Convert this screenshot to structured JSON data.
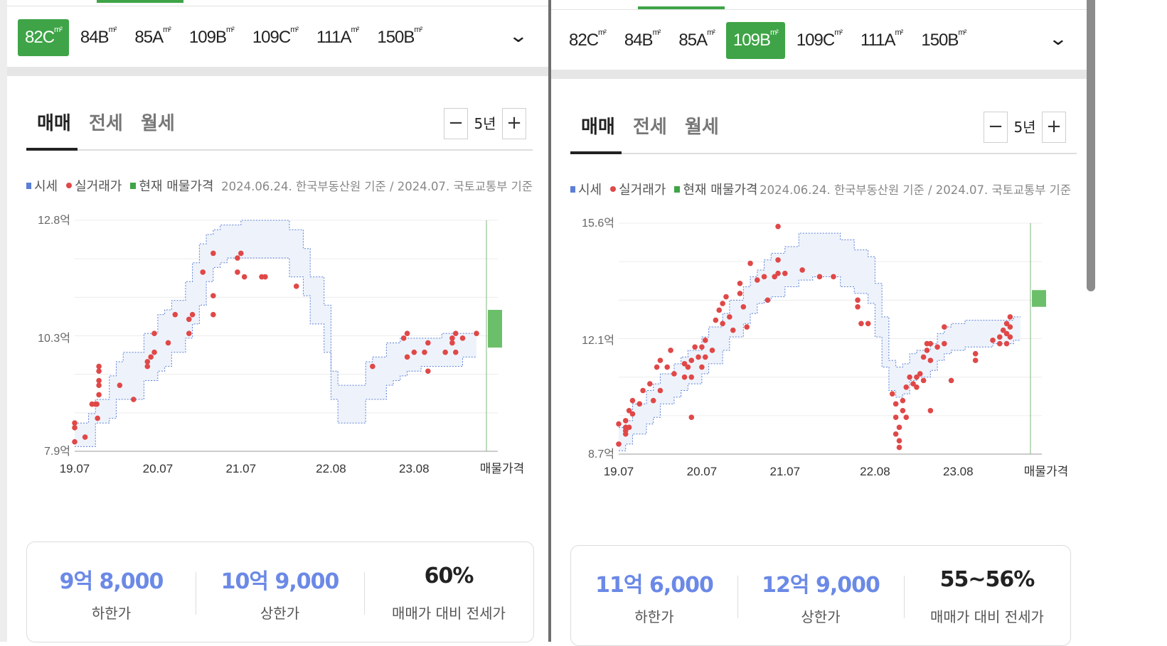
{
  "panels": [
    {
      "size_tabs": [
        {
          "label": "82C",
          "unit": "m²",
          "active": true
        },
        {
          "label": "84B",
          "unit": "m²",
          "active": false
        },
        {
          "label": "85A",
          "unit": "m²",
          "active": false
        },
        {
          "label": "109B",
          "unit": "m²",
          "active": false
        },
        {
          "label": "109C",
          "unit": "m²",
          "active": false
        },
        {
          "label": "111A",
          "unit": "m²",
          "active": false
        },
        {
          "label": "150B",
          "unit": "m²",
          "active": false
        }
      ],
      "deal_tabs": [
        "매매",
        "전세",
        "월세"
      ],
      "period": {
        "label": "5년",
        "minus": "−",
        "plus": "+"
      },
      "legend": {
        "market": "시세",
        "actual": "실거래가",
        "listing": "현재 매물가격"
      },
      "source_note": "2024.06.24. 한국부동산원 기준 / 2024.07. 국토교통부 기준",
      "summary": {
        "low_value": "9억 8,000",
        "low_label": "하한가",
        "high_value": "10억 9,000",
        "high_label": "상한가",
        "ratio_value": "60%",
        "ratio_label": "매매가 대비 전세가"
      }
    },
    {
      "size_tabs": [
        {
          "label": "82C",
          "unit": "m²",
          "active": false
        },
        {
          "label": "84B",
          "unit": "m²",
          "active": false
        },
        {
          "label": "85A",
          "unit": "m²",
          "active": false
        },
        {
          "label": "109B",
          "unit": "m²",
          "active": true
        },
        {
          "label": "109C",
          "unit": "m²",
          "active": false
        },
        {
          "label": "111A",
          "unit": "m²",
          "active": false
        },
        {
          "label": "150B",
          "unit": "m²",
          "active": false
        }
      ],
      "deal_tabs": [
        "매매",
        "전세",
        "월세"
      ],
      "period": {
        "label": "5년",
        "minus": "−",
        "plus": "+"
      },
      "legend": {
        "market": "시세",
        "actual": "실거래가",
        "listing": "현재 매물가격"
      },
      "source_note": "2024.06.24. 한국부동산원 기준 / 2024.07. 국토교통부 기준",
      "summary": {
        "low_value": "11억 6,000",
        "low_label": "하한가",
        "high_value": "12억 9,000",
        "high_label": "상한가",
        "ratio_value": "55~56%",
        "ratio_label": "매매가 대비 전세가"
      }
    }
  ],
  "colors": {
    "accent": "#3fa447",
    "market_band": "#eef3fb",
    "market_line": "#5b7fd6",
    "actual_dot": "#e04848",
    "listing_bar": "#6cbf6a",
    "summary_value": "#6b89e6"
  },
  "chart_data": [
    {
      "type": "scatter",
      "unit": "억",
      "ytick_labels": [
        "12.8억",
        "10.3억",
        "7.9억"
      ],
      "yticks": [
        12.8,
        10.3,
        7.9
      ],
      "ylim": [
        7.9,
        12.8
      ],
      "x_type": "months since 2019.07",
      "xticks": [
        0,
        12,
        24,
        37,
        49
      ],
      "xtick_labels": [
        "19.07",
        "20.07",
        "21.07",
        "22.08",
        "23.08",
        "매물가격"
      ],
      "xlim": [
        0,
        58
      ],
      "market_band": {
        "x": [
          0,
          2,
          3,
          5,
          6,
          7,
          9,
          10,
          12,
          13,
          14,
          16,
          17,
          18,
          19,
          20,
          21,
          22,
          24,
          26,
          27,
          31,
          33,
          34,
          36,
          37,
          38,
          39,
          40,
          42,
          43,
          45,
          46,
          47,
          48,
          50,
          51,
          53,
          54,
          56,
          57,
          58
        ],
        "lower": [
          8.0,
          8.0,
          8.5,
          8.6,
          9.0,
          9.0,
          9.0,
          9.4,
          9.6,
          9.7,
          10.0,
          10.3,
          10.6,
          11.0,
          11.5,
          11.8,
          11.9,
          12.0,
          12.0,
          12.0,
          12.0,
          11.6,
          11.2,
          10.6,
          10.0,
          9.0,
          8.5,
          8.5,
          8.5,
          9.0,
          9.0,
          9.3,
          9.4,
          9.5,
          9.6,
          9.7,
          9.7,
          9.7,
          9.7,
          9.9,
          9.9,
          9.9
        ],
        "upper": [
          8.5,
          8.7,
          9.0,
          9.5,
          9.8,
          10.0,
          10.0,
          10.4,
          10.8,
          10.9,
          11.1,
          11.5,
          11.9,
          12.3,
          12.5,
          12.6,
          12.7,
          12.7,
          12.8,
          12.8,
          12.8,
          12.6,
          12.2,
          11.6,
          11.0,
          9.6,
          9.3,
          9.3,
          9.3,
          9.8,
          9.9,
          10.2,
          10.2,
          10.3,
          10.3,
          10.3,
          10.3,
          10.4,
          10.4,
          10.4,
          10.4,
          10.4
        ]
      },
      "actual": [
        [
          0,
          8.1
        ],
        [
          0,
          8.4
        ],
        [
          0,
          8.5
        ],
        [
          1.5,
          8.2
        ],
        [
          2.5,
          8.9
        ],
        [
          3,
          8.9
        ],
        [
          3.2,
          8.9
        ],
        [
          3.5,
          9.1
        ],
        [
          3.5,
          9.3
        ],
        [
          3.5,
          9.4
        ],
        [
          3.5,
          9.6
        ],
        [
          3.5,
          9.7
        ],
        [
          3.3,
          8.6
        ],
        [
          6.5,
          9.3
        ],
        [
          8.5,
          9.0
        ],
        [
          10.5,
          9.8
        ],
        [
          10.5,
          9.7
        ],
        [
          11.0,
          9.9
        ],
        [
          11.5,
          10.0
        ],
        [
          11.5,
          10.4
        ],
        [
          13.5,
          10.2
        ],
        [
          14.5,
          10.8
        ],
        [
          16.5,
          10.4
        ],
        [
          16.5,
          10.7
        ],
        [
          17.0,
          10.8
        ],
        [
          18.5,
          11.7
        ],
        [
          20.0,
          12.1
        ],
        [
          20.0,
          10.8
        ],
        [
          20.0,
          11.2
        ],
        [
          23.5,
          11.7
        ],
        [
          23.5,
          12.0
        ],
        [
          24.0,
          12.1
        ],
        [
          24.5,
          11.6
        ],
        [
          27.0,
          11.6
        ],
        [
          27.5,
          11.6
        ],
        [
          32.0,
          11.4
        ],
        [
          43.0,
          9.7
        ],
        [
          47.5,
          10.3
        ],
        [
          48.0,
          10.4
        ],
        [
          48.0,
          9.9
        ],
        [
          49.0,
          10.0
        ],
        [
          50.5,
          10.0
        ],
        [
          51.0,
          10.2
        ],
        [
          51.0,
          9.6
        ],
        [
          53.5,
          10.0
        ],
        [
          54.5,
          10.3
        ],
        [
          54.5,
          10.2
        ],
        [
          55.0,
          10.4
        ],
        [
          55.0,
          10.0
        ],
        [
          56.0,
          10.3
        ],
        [
          58.0,
          10.4
        ]
      ],
      "listing_range": [
        10.1,
        10.9
      ],
      "summary_low": "9억 8,000",
      "summary_high": "10억 9,000"
    },
    {
      "type": "scatter",
      "unit": "억",
      "ytick_labels": [
        "15.6억",
        "12.1억",
        "8.7억"
      ],
      "yticks": [
        15.6,
        12.1,
        8.7
      ],
      "ylim": [
        8.7,
        15.6
      ],
      "x_type": "months since 2019.07",
      "xticks": [
        0,
        12,
        24,
        37,
        49
      ],
      "xtick_labels": [
        "19.07",
        "20.07",
        "21.07",
        "22.08",
        "23.08",
        "매물가격"
      ],
      "xlim": [
        0,
        58
      ],
      "market_band": {
        "x": [
          0,
          1,
          2,
          4,
          5,
          6,
          8,
          9,
          10,
          12,
          13,
          15,
          16,
          18,
          19,
          20,
          21,
          22,
          24,
          26,
          28,
          30,
          32,
          34,
          36,
          37,
          38,
          39,
          40,
          41,
          42,
          43,
          45,
          46,
          47,
          48,
          50,
          51,
          53,
          54,
          56,
          57,
          58
        ],
        "lower": [
          8.8,
          9.0,
          9.3,
          9.6,
          9.8,
          10.2,
          10.4,
          10.6,
          10.8,
          11.1,
          11.4,
          11.8,
          12.2,
          12.6,
          12.9,
          13.2,
          13.3,
          13.4,
          13.7,
          13.9,
          14.0,
          14.0,
          13.7,
          13.5,
          13.2,
          12.2,
          11.3,
          10.6,
          10.4,
          10.5,
          10.9,
          11.0,
          11.2,
          11.5,
          11.7,
          11.8,
          11.9,
          11.9,
          11.9,
          12.0,
          12.0,
          12.1,
          12.1
        ],
        "upper": [
          9.5,
          9.7,
          10.2,
          10.6,
          10.8,
          11.1,
          11.4,
          11.6,
          11.8,
          12.2,
          12.5,
          12.9,
          13.3,
          13.7,
          14.0,
          14.2,
          14.5,
          14.7,
          14.9,
          15.3,
          15.3,
          15.3,
          15.1,
          14.8,
          14.6,
          13.8,
          12.8,
          11.5,
          11.3,
          11.4,
          11.7,
          11.8,
          12.0,
          12.3,
          12.5,
          12.6,
          12.7,
          12.7,
          12.7,
          12.7,
          12.7,
          12.8,
          12.8
        ]
      },
      "actual": [
        [
          0,
          9.0
        ],
        [
          0,
          9.6
        ],
        [
          1,
          9.5
        ],
        [
          1,
          9.4
        ],
        [
          1,
          9.3
        ],
        [
          1,
          9.7
        ],
        [
          1.5,
          10.0
        ],
        [
          1.5,
          9.5
        ],
        [
          2,
          10.3
        ],
        [
          2,
          9.9
        ],
        [
          3,
          10.2
        ],
        [
          3.5,
          10.6
        ],
        [
          4.5,
          10.8
        ],
        [
          5,
          10.3
        ],
        [
          5.5,
          11.3
        ],
        [
          6,
          11.5
        ],
        [
          6,
          10.6
        ],
        [
          7,
          11.3
        ],
        [
          7.5,
          11.8
        ],
        [
          8,
          11.1
        ],
        [
          9.5,
          11.4
        ],
        [
          9.5,
          11.0
        ],
        [
          10,
          11.3
        ],
        [
          10.5,
          11.5
        ],
        [
          10.5,
          11.0
        ],
        [
          10.5,
          9.8
        ],
        [
          11,
          11.9
        ],
        [
          11.5,
          11.6
        ],
        [
          12,
          11.9
        ],
        [
          12,
          11.3
        ],
        [
          12.5,
          12.1
        ],
        [
          12.5,
          11.6
        ],
        [
          13.5,
          11.8
        ],
        [
          14,
          12.7
        ],
        [
          14.5,
          13.0
        ],
        [
          15,
          13.2
        ],
        [
          15,
          12.6
        ],
        [
          15.5,
          13.4
        ],
        [
          16,
          12.8
        ],
        [
          16.5,
          12.4
        ],
        [
          17.5,
          13.8
        ],
        [
          17.5,
          13.5
        ],
        [
          18,
          13.1
        ],
        [
          18.5,
          12.5
        ],
        [
          19,
          14.4
        ],
        [
          20,
          13.9
        ],
        [
          21,
          14.0
        ],
        [
          21.5,
          13.3
        ],
        [
          22.5,
          14.0
        ],
        [
          23,
          14.1
        ],
        [
          23,
          14.5
        ],
        [
          23,
          15.5
        ],
        [
          24,
          14.1
        ],
        [
          26.5,
          14.2
        ],
        [
          29,
          14.0
        ],
        [
          31,
          14.0
        ],
        [
          34.5,
          13.3
        ],
        [
          34.5,
          13.1
        ],
        [
          35,
          12.6
        ],
        [
          36,
          12.6
        ],
        [
          39.5,
          10.5
        ],
        [
          40,
          10.2
        ],
        [
          40,
          9.8
        ],
        [
          40,
          9.3
        ],
        [
          40.5,
          9.5
        ],
        [
          40.5,
          9.1
        ],
        [
          40.5,
          8.9
        ],
        [
          41,
          10.3
        ],
        [
          41,
          10.0
        ],
        [
          41.5,
          10.7
        ],
        [
          41.5,
          9.8
        ],
        [
          42,
          11.0
        ],
        [
          42.5,
          10.8
        ],
        [
          43,
          11.0
        ],
        [
          43,
          10.7
        ],
        [
          43.5,
          11.1
        ],
        [
          44,
          11.6
        ],
        [
          44,
          10.9
        ],
        [
          44.5,
          11.8
        ],
        [
          44.5,
          12.0
        ],
        [
          45,
          12.0
        ],
        [
          45,
          11.5
        ],
        [
          45,
          10.0
        ],
        [
          46,
          11.9
        ],
        [
          47,
          12.0
        ],
        [
          47,
          12.5
        ],
        [
          48,
          10.9
        ],
        [
          51.5,
          11.7
        ],
        [
          51.5,
          11.5
        ],
        [
          54,
          12.1
        ],
        [
          55,
          12.2
        ],
        [
          55,
          12.0
        ],
        [
          55.5,
          12.4
        ],
        [
          56,
          12.0
        ],
        [
          56,
          12.3
        ],
        [
          56,
          12.6
        ],
        [
          56.5,
          12.8
        ],
        [
          56.5,
          12.2
        ],
        [
          56.5,
          12.5
        ]
      ],
      "listing_range": [
        13.1,
        13.6
      ],
      "summary_low": "11억 6,000",
      "summary_high": "12억 9,000"
    }
  ]
}
